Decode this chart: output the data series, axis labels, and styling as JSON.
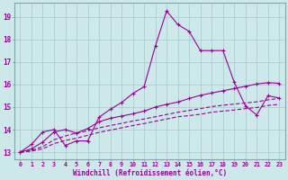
{
  "background_color": "#cce8e8",
  "grid_color": "#aacece",
  "line_color": "#990099",
  "xlabel": "Windchill (Refroidissement éolien,°C)",
  "xlim": [
    -0.5,
    23.5
  ],
  "ylim": [
    12.7,
    19.6
  ],
  "yticks": [
    13,
    14,
    15,
    16,
    17,
    18,
    19
  ],
  "xticks": [
    0,
    1,
    2,
    3,
    4,
    5,
    6,
    7,
    8,
    9,
    10,
    11,
    12,
    13,
    14,
    15,
    16,
    17,
    18,
    19,
    20,
    21,
    22,
    23
  ],
  "line1_x": [
    0,
    1,
    2,
    3,
    4,
    5,
    6,
    7,
    8,
    9,
    10,
    11,
    12,
    13,
    14,
    15,
    16,
    17,
    18,
    19,
    20,
    21,
    22,
    23
  ],
  "line1_y": [
    13.0,
    13.35,
    13.9,
    14.0,
    13.3,
    13.5,
    13.5,
    14.55,
    14.9,
    15.2,
    15.6,
    15.9,
    17.7,
    19.25,
    18.65,
    18.35,
    17.5,
    17.5,
    17.5,
    16.1,
    15.05,
    14.65,
    15.5,
    15.4
  ],
  "line2_x": [
    0,
    1,
    2,
    3,
    4,
    5,
    6,
    7,
    8,
    9,
    10,
    11,
    12,
    13,
    14,
    15,
    16,
    17,
    18,
    19,
    20,
    21,
    22,
    23
  ],
  "line2_y": [
    13.0,
    13.15,
    13.45,
    13.9,
    14.0,
    13.85,
    14.05,
    14.35,
    14.5,
    14.6,
    14.7,
    14.82,
    15.0,
    15.12,
    15.22,
    15.38,
    15.52,
    15.62,
    15.72,
    15.82,
    15.92,
    16.02,
    16.08,
    16.05
  ],
  "line3_x": [
    0,
    1,
    2,
    3,
    4,
    5,
    6,
    7,
    8,
    9,
    10,
    11,
    12,
    13,
    14,
    15,
    16,
    17,
    18,
    19,
    20,
    21,
    22,
    23
  ],
  "line3_y": [
    13.0,
    13.08,
    13.25,
    13.55,
    13.72,
    13.85,
    13.95,
    14.08,
    14.18,
    14.28,
    14.38,
    14.47,
    14.57,
    14.67,
    14.77,
    14.85,
    14.93,
    15.02,
    15.08,
    15.13,
    15.18,
    15.23,
    15.32,
    15.38
  ],
  "line4_x": [
    0,
    1,
    2,
    3,
    4,
    5,
    6,
    7,
    8,
    9,
    10,
    11,
    12,
    13,
    14,
    15,
    16,
    17,
    18,
    19,
    20,
    21,
    22,
    23
  ],
  "line4_y": [
    13.0,
    13.05,
    13.15,
    13.38,
    13.52,
    13.62,
    13.75,
    13.88,
    13.98,
    14.08,
    14.18,
    14.27,
    14.37,
    14.47,
    14.57,
    14.62,
    14.68,
    14.77,
    14.82,
    14.87,
    14.93,
    14.98,
    15.07,
    15.12
  ]
}
